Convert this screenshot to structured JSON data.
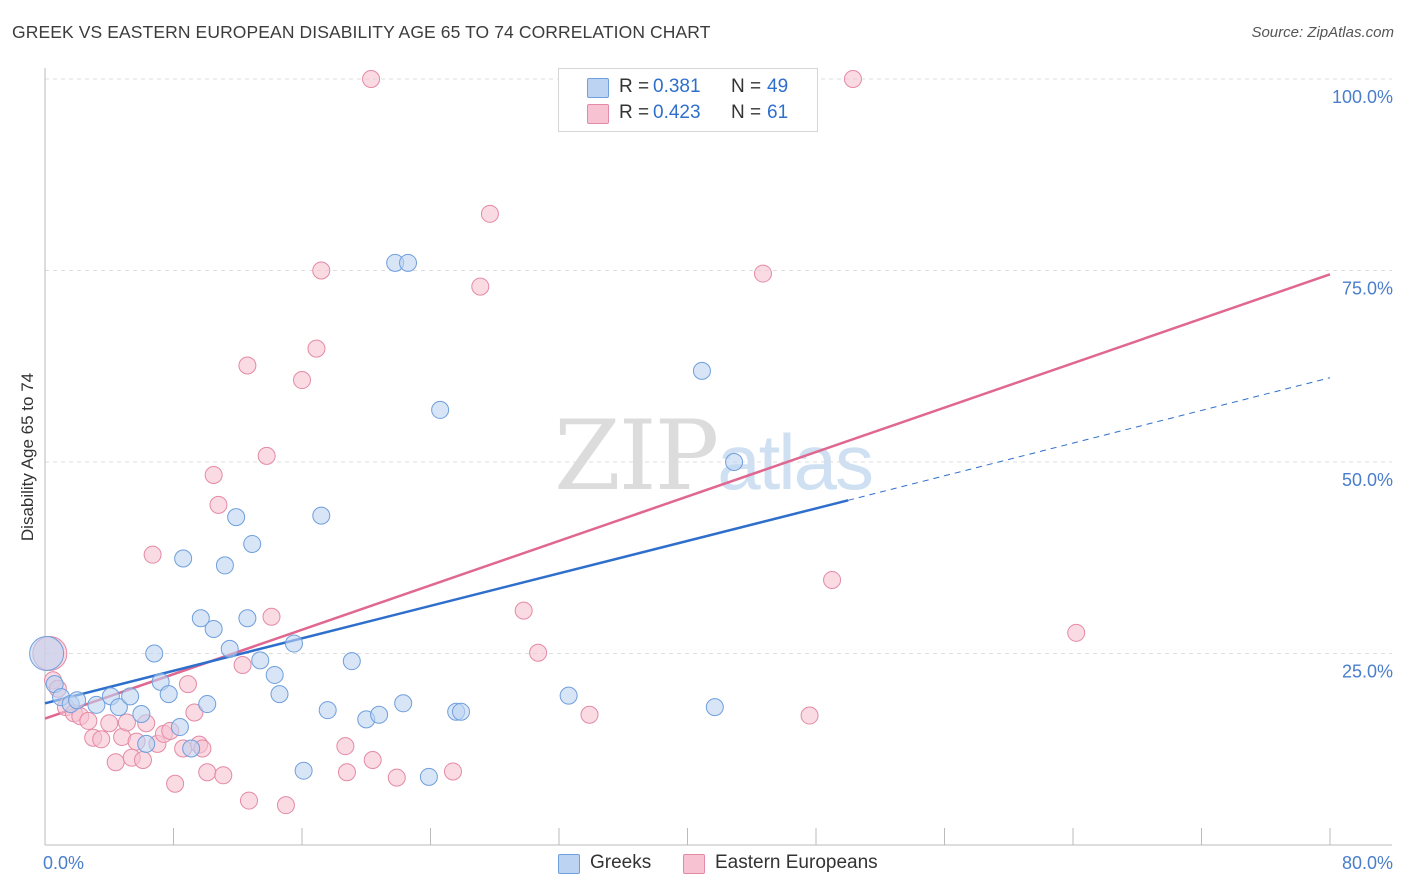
{
  "title": "GREEK VS EASTERN EUROPEAN DISABILITY AGE 65 TO 74 CORRELATION CHART",
  "source": "Source: ZipAtlas.com",
  "watermark": {
    "part1": "ZIP",
    "part2": "atlas"
  },
  "colors": {
    "greeks_fill": "#bcd4f1",
    "greeks_stroke": "#6f9fdc",
    "greeks_line": "#2f6fcc",
    "ee_fill": "#f7c2d1",
    "ee_stroke": "#e48aa5",
    "ee_line": "#e0678f",
    "grid": "#dddddd",
    "axis": "#bbbbbb",
    "tick_text": "#4a7ecb"
  },
  "legend_top": [
    {
      "r_label": "R =",
      "r_value": "0.381",
      "n_label": "N =",
      "n_value": "49"
    },
    {
      "r_label": "R =",
      "r_value": "0.423",
      "n_label": "N =",
      "n_value": "61"
    }
  ],
  "legend_bottom": [
    {
      "label": "Greeks"
    },
    {
      "label": "Eastern Europeans"
    }
  ],
  "chart_data": {
    "type": "scatter",
    "title": "GREEK VS EASTERN EUROPEAN DISABILITY AGE 65 TO 74 CORRELATION CHART",
    "xlabel": "",
    "ylabel": "Disability Age 65 to 74",
    "xlim": [
      0,
      80
    ],
    "ylim": [
      0,
      100
    ],
    "x_tick_labels": [
      {
        "value": 0,
        "label": "0.0%"
      },
      {
        "value": 80,
        "label": "80.0%"
      }
    ],
    "y_tick_labels": [
      {
        "value": 100,
        "label": "100.0%"
      },
      {
        "value": 75,
        "label": "75.0%"
      },
      {
        "value": 50,
        "label": "50.0%"
      },
      {
        "value": 25,
        "label": "25.0%"
      }
    ],
    "grid": true,
    "series": [
      {
        "name": "Greeks",
        "r": 0.381,
        "n": 49,
        "trend": {
          "x0": 0,
          "y0": 18.5,
          "x1": 50,
          "y1": 45.0,
          "dashed_to_x": 80,
          "dashed_to_y": 61.0
        },
        "points": [
          {
            "x": 0.1,
            "y": 25.0,
            "big": true
          },
          {
            "x": 0.6,
            "y": 21.0
          },
          {
            "x": 1.0,
            "y": 19.3
          },
          {
            "x": 1.6,
            "y": 18.4
          },
          {
            "x": 2.0,
            "y": 18.9
          },
          {
            "x": 3.2,
            "y": 18.3
          },
          {
            "x": 4.1,
            "y": 19.4
          },
          {
            "x": 4.6,
            "y": 18.0
          },
          {
            "x": 5.3,
            "y": 19.4
          },
          {
            "x": 6.0,
            "y": 17.1
          },
          {
            "x": 6.3,
            "y": 13.2
          },
          {
            "x": 6.8,
            "y": 25.0
          },
          {
            "x": 7.2,
            "y": 21.3
          },
          {
            "x": 7.7,
            "y": 19.7
          },
          {
            "x": 8.4,
            "y": 15.4
          },
          {
            "x": 8.6,
            "y": 37.4
          },
          {
            "x": 9.1,
            "y": 12.6
          },
          {
            "x": 9.7,
            "y": 29.6
          },
          {
            "x": 10.1,
            "y": 18.4
          },
          {
            "x": 10.5,
            "y": 28.2
          },
          {
            "x": 11.2,
            "y": 36.5
          },
          {
            "x": 11.5,
            "y": 25.6
          },
          {
            "x": 11.9,
            "y": 42.8
          },
          {
            "x": 12.6,
            "y": 29.6
          },
          {
            "x": 12.9,
            "y": 39.3
          },
          {
            "x": 13.4,
            "y": 24.1
          },
          {
            "x": 14.3,
            "y": 22.2
          },
          {
            "x": 14.6,
            "y": 19.7
          },
          {
            "x": 15.5,
            "y": 26.3
          },
          {
            "x": 16.1,
            "y": 9.7
          },
          {
            "x": 17.2,
            "y": 43.0
          },
          {
            "x": 17.6,
            "y": 17.6
          },
          {
            "x": 19.1,
            "y": 24.0
          },
          {
            "x": 20.0,
            "y": 16.4
          },
          {
            "x": 20.8,
            "y": 17.0
          },
          {
            "x": 21.8,
            "y": 76.0
          },
          {
            "x": 22.6,
            "y": 76.0
          },
          {
            "x": 22.3,
            "y": 18.5
          },
          {
            "x": 23.9,
            "y": 8.9
          },
          {
            "x": 24.6,
            "y": 56.8
          },
          {
            "x": 25.6,
            "y": 17.4
          },
          {
            "x": 25.9,
            "y": 17.4
          },
          {
            "x": 32.6,
            "y": 19.5
          },
          {
            "x": 40.9,
            "y": 61.9
          },
          {
            "x": 42.9,
            "y": 50.0
          },
          {
            "x": 41.7,
            "y": 18.0
          }
        ]
      },
      {
        "name": "Eastern Europeans",
        "r": 0.423,
        "n": 61,
        "trend": {
          "x0": 0,
          "y0": 16.5,
          "x1": 80,
          "y1": 74.5
        },
        "points": [
          {
            "x": 0.3,
            "y": 25.0,
            "big": true
          },
          {
            "x": 0.5,
            "y": 21.5
          },
          {
            "x": 0.8,
            "y": 20.4
          },
          {
            "x": 1.3,
            "y": 18.0
          },
          {
            "x": 1.8,
            "y": 17.2
          },
          {
            "x": 2.2,
            "y": 16.8
          },
          {
            "x": 2.7,
            "y": 16.2
          },
          {
            "x": 3.0,
            "y": 14.0
          },
          {
            "x": 3.5,
            "y": 13.8
          },
          {
            "x": 4.0,
            "y": 15.9
          },
          {
            "x": 4.4,
            "y": 10.8
          },
          {
            "x": 4.8,
            "y": 14.1
          },
          {
            "x": 5.1,
            "y": 16.0
          },
          {
            "x": 5.4,
            "y": 11.4
          },
          {
            "x": 5.7,
            "y": 13.5
          },
          {
            "x": 6.1,
            "y": 11.1
          },
          {
            "x": 6.3,
            "y": 15.9
          },
          {
            "x": 6.7,
            "y": 37.9
          },
          {
            "x": 7.0,
            "y": 13.2
          },
          {
            "x": 7.4,
            "y": 14.5
          },
          {
            "x": 7.8,
            "y": 14.9
          },
          {
            "x": 8.1,
            "y": 8.0
          },
          {
            "x": 8.6,
            "y": 12.6
          },
          {
            "x": 8.9,
            "y": 21.0
          },
          {
            "x": 9.3,
            "y": 17.3
          },
          {
            "x": 9.6,
            "y": 13.1
          },
          {
            "x": 9.8,
            "y": 12.6
          },
          {
            "x": 10.1,
            "y": 9.5
          },
          {
            "x": 10.5,
            "y": 48.3
          },
          {
            "x": 10.8,
            "y": 44.4
          },
          {
            "x": 11.1,
            "y": 9.1
          },
          {
            "x": 12.3,
            "y": 23.5
          },
          {
            "x": 12.6,
            "y": 62.6
          },
          {
            "x": 12.7,
            "y": 5.8
          },
          {
            "x": 13.8,
            "y": 50.8
          },
          {
            "x": 14.1,
            "y": 29.8
          },
          {
            "x": 15.0,
            "y": 5.2
          },
          {
            "x": 16.0,
            "y": 60.7
          },
          {
            "x": 16.9,
            "y": 64.8
          },
          {
            "x": 17.2,
            "y": 75.0
          },
          {
            "x": 18.7,
            "y": 12.9
          },
          {
            "x": 18.8,
            "y": 9.5
          },
          {
            "x": 20.3,
            "y": 100.0
          },
          {
            "x": 20.4,
            "y": 11.1
          },
          {
            "x": 21.9,
            "y": 8.8
          },
          {
            "x": 25.4,
            "y": 9.6
          },
          {
            "x": 27.1,
            "y": 72.9
          },
          {
            "x": 27.7,
            "y": 82.4
          },
          {
            "x": 29.8,
            "y": 30.6
          },
          {
            "x": 30.7,
            "y": 25.1
          },
          {
            "x": 33.9,
            "y": 17.0
          },
          {
            "x": 44.7,
            "y": 74.6
          },
          {
            "x": 47.6,
            "y": 16.9
          },
          {
            "x": 49.0,
            "y": 34.6
          },
          {
            "x": 50.3,
            "y": 100.0
          },
          {
            "x": 64.2,
            "y": 27.7
          }
        ]
      }
    ]
  }
}
